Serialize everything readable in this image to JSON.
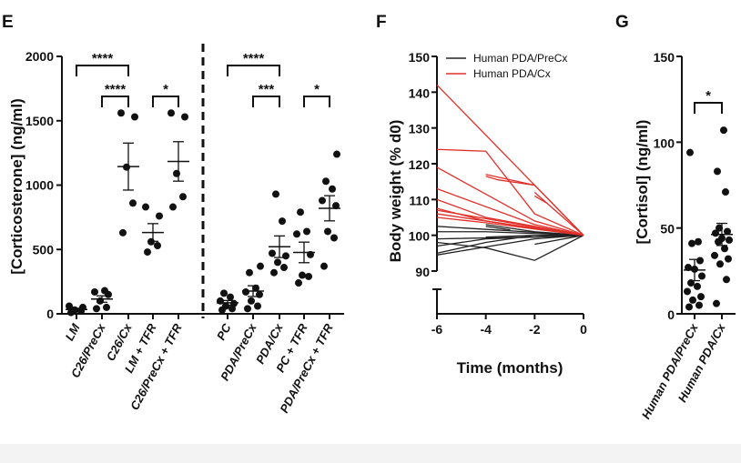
{
  "chart_data": [
    {
      "panel": "E",
      "type": "scatter",
      "ylabel": "[Corticosterone] (ng/ml)",
      "ylim": [
        0,
        2000
      ],
      "yticks": [
        0,
        500,
        1000,
        1500,
        2000
      ],
      "categories": [
        "LM",
        "C26/PreCx",
        "C26/Cx",
        "LM + TFR",
        "C26/PreCx + TFR",
        "PC",
        "PDA/PreCx",
        "PDA/Cx",
        "PC + TFR",
        "PDA/PreCx + TFR"
      ],
      "values": [
        [
          10,
          20,
          30,
          50,
          60
        ],
        [
          40,
          50,
          100,
          150,
          170,
          180
        ],
        [
          630,
          860,
          1140,
          1530,
          1560
        ],
        [
          480,
          530,
          560,
          760,
          830
        ],
        [
          830,
          910,
          1090,
          1530,
          1560
        ],
        [
          30,
          40,
          60,
          80,
          100,
          130,
          160
        ],
        [
          40,
          60,
          100,
          150,
          170,
          200,
          320,
          370
        ],
        [
          320,
          360,
          400,
          450,
          470,
          720,
          930
        ],
        [
          240,
          290,
          300,
          460,
          620,
          640,
          790
        ],
        [
          370,
          590,
          640,
          840,
          880,
          970,
          1030,
          1240
        ]
      ],
      "group_divider_after": "C26/PreCx + TFR",
      "significance": [
        {
          "from": "LM",
          "to": "C26/Cx",
          "label": "****"
        },
        {
          "from": "C26/PreCx",
          "to": "C26/Cx",
          "label": "****"
        },
        {
          "from": "LM + TFR",
          "to": "C26/PreCx + TFR",
          "label": "*"
        },
        {
          "from": "PC",
          "to": "PDA/Cx",
          "label": "****"
        },
        {
          "from": "PDA/PreCx",
          "to": "PDA/Cx",
          "label": "***"
        },
        {
          "from": "PC + TFR",
          "to": "PDA/PreCx + TFR",
          "label": "*"
        }
      ],
      "error_bars": "mean ± SEM"
    },
    {
      "panel": "F",
      "type": "line",
      "xlabel": "Time (months)",
      "ylabel": "Body weight (% d0)",
      "xlim": [
        -6,
        0
      ],
      "xticks": [
        -6,
        -4,
        -2,
        0
      ],
      "ylim": [
        90,
        150
      ],
      "yticks": [
        90,
        100,
        110,
        120,
        130,
        140,
        150
      ],
      "axis_break": true,
      "legend": "top-right",
      "series": [
        {
          "name": "Human PDA/PreCx",
          "color": "#222222",
          "lines": [
            [
              [
                -6,
                102.5
              ],
              [
                0,
                100
              ]
            ],
            [
              [
                -6,
                101
              ],
              [
                -4,
                101
              ],
              [
                0,
                100
              ]
            ],
            [
              [
                -6,
                99
              ],
              [
                -2,
                99.5
              ],
              [
                0,
                100
              ]
            ],
            [
              [
                -6,
                98
              ],
              [
                -4,
                96.5
              ],
              [
                -2,
                93
              ],
              [
                0,
                100
              ]
            ],
            [
              [
                -6,
                97
              ],
              [
                -4,
                99
              ],
              [
                0,
                100
              ]
            ],
            [
              [
                -6,
                95
              ],
              [
                -4,
                98
              ],
              [
                -2,
                100
              ],
              [
                0,
                100
              ]
            ],
            [
              [
                -6,
                94.5
              ],
              [
                -2,
                99
              ],
              [
                0,
                100
              ]
            ],
            [
              [
                -4,
                103
              ],
              [
                -2,
                101
              ],
              [
                0,
                100
              ]
            ],
            [
              [
                -4,
                99.5
              ],
              [
                -2,
                100
              ],
              [
                0,
                100
              ]
            ],
            [
              [
                -2,
                97.5
              ],
              [
                0,
                100
              ]
            ],
            [
              [
                -4,
                102.5
              ],
              [
                -3,
                101.5
              ]
            ]
          ]
        },
        {
          "name": "Human PDA/Cx",
          "color": "#e0302a",
          "lines": [
            [
              [
                -6,
                142
              ],
              [
                0,
                100
              ]
            ],
            [
              [
                -6,
                124
              ],
              [
                -4,
                123.5
              ],
              [
                -2,
                106
              ],
              [
                0,
                100
              ]
            ],
            [
              [
                -6,
                119
              ],
              [
                -2,
                104
              ],
              [
                0,
                100
              ]
            ],
            [
              [
                -6,
                113
              ],
              [
                -2,
                103
              ],
              [
                0,
                100
              ]
            ],
            [
              [
                -6,
                110
              ],
              [
                -4,
                105
              ],
              [
                0,
                100
              ]
            ],
            [
              [
                -6,
                107.5
              ],
              [
                -4,
                104
              ],
              [
                0,
                100
              ]
            ],
            [
              [
                -6,
                107
              ],
              [
                0,
                100
              ]
            ],
            [
              [
                -6,
                105
              ],
              [
                -4,
                103.5
              ],
              [
                0,
                100
              ]
            ],
            [
              [
                -4,
                117
              ],
              [
                -2,
                114
              ],
              [
                0,
                100
              ]
            ],
            [
              [
                -4,
                116.5
              ],
              [
                -3.5,
                115.5
              ],
              [
                -2,
                114
              ]
            ],
            [
              [
                -2,
                112
              ],
              [
                0,
                100
              ]
            ],
            [
              [
                -2,
                111
              ],
              [
                -1.5,
                109
              ]
            ],
            [
              [
                -6,
                106
              ],
              [
                -2,
                102
              ],
              [
                0,
                100
              ]
            ]
          ]
        }
      ]
    },
    {
      "panel": "G",
      "type": "scatter",
      "ylabel": "[Cortisol] (ng/ml)",
      "ylim": [
        0,
        150
      ],
      "yticks": [
        0,
        50,
        100,
        150
      ],
      "categories": [
        "Human PDA/PreCx",
        "Human PDA/Cx"
      ],
      "values": [
        [
          4,
          5,
          8,
          10,
          13,
          16,
          18,
          22,
          26,
          27,
          31,
          41,
          42,
          94
        ],
        [
          6,
          20,
          29,
          32,
          34,
          38,
          42,
          43,
          44,
          47,
          48,
          50,
          71,
          83,
          107
        ]
      ],
      "significance": [
        {
          "from": "Human PDA/PreCx",
          "to": "Human PDA/Cx",
          "label": "*"
        }
      ],
      "error_bars": "mean ± SEM"
    }
  ]
}
